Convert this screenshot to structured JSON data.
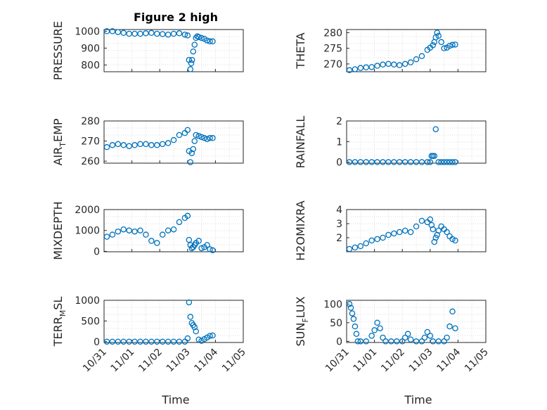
{
  "figure": {
    "title": "Figure 2 high",
    "x_label": "Time",
    "x_ticks": [
      "10/31",
      "11/01",
      "11/02",
      "11/03",
      "11/04",
      "11/05"
    ],
    "marker_color": "#0072BD"
  },
  "chart_data": [
    {
      "type": "scatter",
      "ylabel": "PRESSURE",
      "ylim": [
        760,
        1010
      ],
      "yticks": [
        "800",
        "900",
        "1000"
      ],
      "ytick_values": [
        800,
        900,
        1000
      ],
      "grid": true,
      "series": [
        {
          "x": [
            0.0,
            0.2,
            0.4,
            0.6,
            0.8,
            1.0,
            1.2,
            1.4,
            1.6,
            1.8,
            2.0,
            2.2,
            2.4,
            2.6,
            2.8,
            2.9,
            2.95,
            3.0,
            3.03,
            3.06,
            3.1,
            3.15,
            3.2,
            3.25,
            3.3,
            3.4,
            3.5,
            3.6,
            3.7,
            3.8
          ],
          "y": [
            1000,
            1000,
            995,
            990,
            985,
            985,
            985,
            988,
            990,
            985,
            983,
            980,
            985,
            988,
            980,
            975,
            830,
            775,
            810,
            830,
            880,
            920,
            960,
            970,
            965,
            960,
            955,
            945,
            940,
            940
          ]
        }
      ]
    },
    {
      "type": "scatter",
      "ylabel": "THETA",
      "ylim": [
        267.5,
        281
      ],
      "yticks": [
        "270",
        "275",
        "280"
      ],
      "ytick_values": [
        270,
        275,
        280
      ],
      "grid": true,
      "series": [
        {
          "x": [
            0.0,
            0.2,
            0.4,
            0.6,
            0.8,
            1.0,
            1.2,
            1.4,
            1.6,
            1.8,
            2.0,
            2.2,
            2.4,
            2.6,
            2.8,
            2.9,
            3.0,
            3.05,
            3.1,
            3.15,
            3.2,
            3.3,
            3.4,
            3.5,
            3.6,
            3.7,
            3.8
          ],
          "y": [
            268,
            268.3,
            268.7,
            268.9,
            269,
            269.4,
            269.8,
            270,
            269.8,
            269.6,
            270,
            270.5,
            271.5,
            272.5,
            274.5,
            275.2,
            276,
            277,
            278.5,
            280,
            279,
            277,
            275,
            275.2,
            275.8,
            276.1,
            276.2
          ]
        }
      ]
    },
    {
      "type": "scatter",
      "ylabel": "AIR_TEMP",
      "ylim": [
        259,
        280
      ],
      "yticks": [
        "260",
        "270",
        "280"
      ],
      "ytick_values": [
        260,
        270,
        280
      ],
      "grid": true,
      "series": [
        {
          "x": [
            0.0,
            0.2,
            0.4,
            0.6,
            0.8,
            1.0,
            1.2,
            1.4,
            1.6,
            1.8,
            2.0,
            2.2,
            2.4,
            2.6,
            2.8,
            2.9,
            2.95,
            3.0,
            3.05,
            3.1,
            3.15,
            3.2,
            3.3,
            3.4,
            3.5,
            3.6,
            3.7,
            3.8
          ],
          "y": [
            267,
            268,
            268.5,
            268,
            267.5,
            268,
            268.5,
            268.5,
            268,
            268,
            268.5,
            269,
            270.5,
            273,
            274,
            275.5,
            265,
            259.5,
            264,
            266,
            270,
            273,
            272.5,
            272,
            271.5,
            271,
            271.5,
            271.5
          ]
        }
      ]
    },
    {
      "type": "scatter",
      "ylabel": "RAINFALL",
      "ylim": [
        -0.05,
        2
      ],
      "yticks": [
        "0",
        "1",
        "2"
      ],
      "ytick_values": [
        0,
        1,
        2
      ],
      "grid": true,
      "series": [
        {
          "x": [
            0.0,
            0.2,
            0.4,
            0.6,
            0.8,
            1.0,
            1.2,
            1.4,
            1.6,
            1.8,
            2.0,
            2.2,
            2.4,
            2.6,
            2.8,
            2.9,
            2.95,
            3.0,
            3.05,
            3.1,
            3.2,
            3.3,
            3.4,
            3.5,
            3.6,
            3.7,
            3.8
          ],
          "y": [
            0,
            0,
            0,
            0,
            0,
            0,
            0,
            0,
            0,
            0,
            0,
            0,
            0,
            0,
            0,
            0,
            0.3,
            0.3,
            0.3,
            1.6,
            0,
            0,
            0,
            0,
            0,
            0,
            0
          ]
        }
      ]
    },
    {
      "type": "scatter",
      "ylabel": "MIXDEPTH",
      "ylim": [
        -20,
        2000
      ],
      "yticks": [
        "0",
        "1000",
        "2000"
      ],
      "ytick_values": [
        0,
        1000,
        2000
      ],
      "grid": true,
      "series": [
        {
          "x": [
            0.0,
            0.2,
            0.4,
            0.6,
            0.8,
            1.0,
            1.2,
            1.4,
            1.6,
            1.8,
            2.0,
            2.2,
            2.4,
            2.6,
            2.8,
            2.9,
            2.95,
            3.0,
            3.05,
            3.1,
            3.15,
            3.2,
            3.3,
            3.4,
            3.5,
            3.6,
            3.7,
            3.8
          ],
          "y": [
            700,
            800,
            950,
            1050,
            1000,
            950,
            1000,
            800,
            500,
            400,
            800,
            1000,
            1050,
            1400,
            1600,
            1700,
            550,
            300,
            150,
            200,
            300,
            400,
            500,
            150,
            200,
            300,
            100,
            50
          ]
        }
      ]
    },
    {
      "type": "scatter",
      "ylabel": "H2OMIXRA",
      "ylim": [
        1,
        4
      ],
      "yticks": [
        "2",
        "3",
        "4"
      ],
      "ytick_values": [
        2,
        3,
        4
      ],
      "grid": true,
      "series": [
        {
          "x": [
            0.0,
            0.2,
            0.4,
            0.6,
            0.8,
            1.0,
            1.2,
            1.4,
            1.6,
            1.8,
            2.0,
            2.2,
            2.4,
            2.6,
            2.8,
            2.9,
            2.95,
            3.0,
            3.05,
            3.1,
            3.15,
            3.2,
            3.3,
            3.4,
            3.5,
            3.6,
            3.7,
            3.8
          ],
          "y": [
            1.2,
            1.3,
            1.4,
            1.6,
            1.8,
            1.9,
            2.0,
            2.2,
            2.3,
            2.4,
            2.5,
            2.4,
            2.8,
            3.2,
            3.1,
            3.3,
            2.9,
            2.6,
            1.7,
            2.0,
            2.2,
            2.5,
            2.8,
            2.6,
            2.4,
            2.1,
            1.9,
            1.8
          ]
        }
      ]
    },
    {
      "type": "scatter",
      "ylabel": "TERR_MSL",
      "ylim": [
        -20,
        1000
      ],
      "yticks": [
        "0",
        "500",
        "1000"
      ],
      "ytick_values": [
        0,
        500,
        1000
      ],
      "grid": true,
      "series": [
        {
          "x": [
            0.0,
            0.2,
            0.4,
            0.6,
            0.8,
            1.0,
            1.2,
            1.4,
            1.6,
            1.8,
            2.0,
            2.2,
            2.4,
            2.6,
            2.8,
            2.9,
            2.95,
            3.0,
            3.05,
            3.1,
            3.15,
            3.2,
            3.3,
            3.4,
            3.5,
            3.6,
            3.7,
            3.8
          ],
          "y": [
            0,
            0,
            0,
            0,
            0,
            0,
            0,
            0,
            0,
            0,
            0,
            0,
            0,
            0,
            0,
            80,
            950,
            600,
            450,
            400,
            350,
            250,
            50,
            20,
            60,
            100,
            140,
            150
          ]
        }
      ]
    },
    {
      "type": "scatter",
      "ylabel": "SUN_FLUX",
      "ylim": [
        -3,
        110
      ],
      "yticks": [
        "0",
        "50",
        "100"
      ],
      "ytick_values": [
        0,
        50,
        100
      ],
      "grid": true,
      "series": [
        {
          "x": [
            0.0,
            0.05,
            0.1,
            0.15,
            0.2,
            0.25,
            0.3,
            0.4,
            0.6,
            0.8,
            0.9,
            1.0,
            1.1,
            1.2,
            1.3,
            1.5,
            1.7,
            1.9,
            2.0,
            2.1,
            2.2,
            2.4,
            2.6,
            2.7,
            2.8,
            2.9,
            3.0,
            3.2,
            3.4,
            3.5,
            3.6,
            3.7,
            3.8
          ],
          "y": [
            100,
            90,
            75,
            60,
            40,
            20,
            0,
            0,
            0,
            15,
            30,
            50,
            35,
            10,
            0,
            0,
            0,
            0,
            10,
            20,
            5,
            0,
            0,
            10,
            25,
            15,
            0,
            0,
            0,
            10,
            40,
            80,
            35
          ]
        }
      ]
    }
  ]
}
